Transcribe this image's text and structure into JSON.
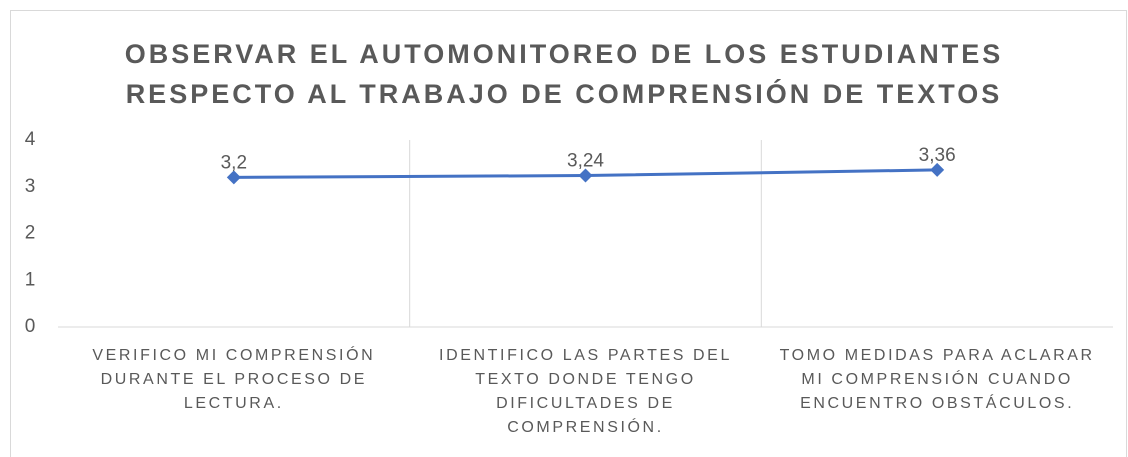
{
  "chart_data": {
    "type": "line",
    "title": "OBSERVAR EL AUTOMONITOREO DE LOS ESTUDIANTES RESPECTO AL TRABAJO DE COMPRENSIÓN DE TEXTOS",
    "categories": [
      "VERIFICO MI COMPRENSIÓN DURANTE EL PROCESO DE LECTURA.",
      "IDENTIFICO LAS PARTES DEL TEXTO DONDE TENGO DIFICULTADES DE COMPRENSIÓN.",
      "TOMO MEDIDAS PARA ACLARAR MI COMPRENSIÓN CUANDO ENCUENTRO OBSTÁCULOS."
    ],
    "values": [
      3.2,
      3.24,
      3.36
    ],
    "value_labels": [
      "3,2",
      "3,24",
      "3,36"
    ],
    "color": "#4472c4",
    "ylim": [
      0,
      4
    ],
    "yticks": [
      0,
      1,
      2,
      3,
      4
    ],
    "grid": false
  }
}
